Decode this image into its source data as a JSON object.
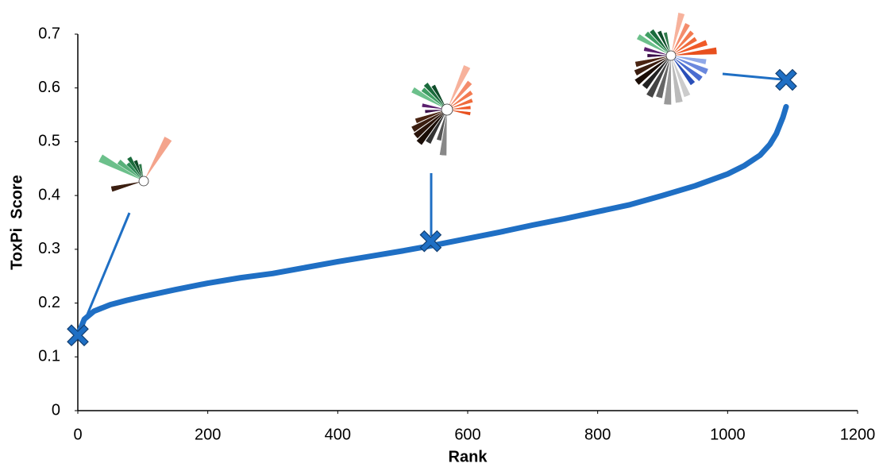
{
  "chart_data": {
    "type": "scatter",
    "x_label": "Rank",
    "y_label": "ToxPi  Score",
    "xlim": [
      0,
      1200
    ],
    "xticks": [
      0,
      200,
      400,
      600,
      800,
      1000,
      1200
    ],
    "ylim": [
      0,
      0.7
    ],
    "yticks": [
      0,
      0.1,
      0.2,
      0.3,
      0.4,
      0.5,
      0.6,
      0.7
    ],
    "series": [
      {
        "color": "#1f6fc4",
        "x": [
          0,
          10,
          25,
          50,
          75,
          100,
          150,
          200,
          250,
          300,
          350,
          400,
          450,
          500,
          550,
          600,
          650,
          700,
          750,
          800,
          850,
          900,
          950,
          1000,
          1025,
          1050,
          1065,
          1075,
          1080,
          1085,
          1090
        ],
        "values": [
          0.14,
          0.17,
          0.185,
          0.197,
          0.205,
          0.212,
          0.225,
          0.237,
          0.247,
          0.255,
          0.266,
          0.277,
          0.287,
          0.297,
          0.308,
          0.32,
          0.332,
          0.345,
          0.357,
          0.37,
          0.383,
          0.4,
          0.418,
          0.44,
          0.455,
          0.475,
          0.495,
          0.515,
          0.53,
          0.545,
          0.565
        ]
      },
      {
        "color": "#1f6fc4",
        "marker": "x",
        "x": [
          0,
          543,
          1090
        ],
        "values": [
          0.14,
          0.315,
          0.615
        ]
      }
    ]
  }
}
